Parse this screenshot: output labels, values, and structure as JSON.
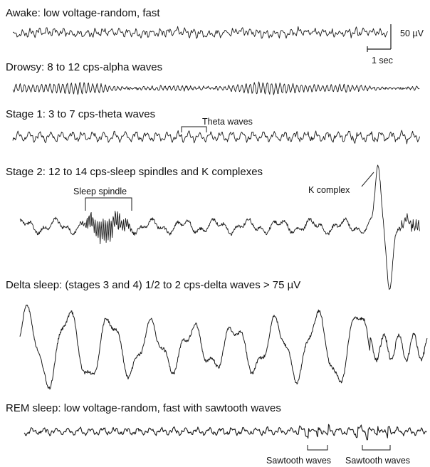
{
  "stages": [
    {
      "id": "awake",
      "label": "Awake: low voltage-random, fast"
    },
    {
      "id": "drowsy",
      "label": "Drowsy: 8 to 12 cps-alpha waves"
    },
    {
      "id": "stage1",
      "label": "Stage 1: 3 to 7 cps-theta waves"
    },
    {
      "id": "stage2",
      "label": "Stage 2: 12 to 14 cps-sleep spindles and K complexes"
    },
    {
      "id": "delta",
      "label": "Delta sleep: (stages 3 and 4) 1/2 to 2 cps-delta waves > 75 µV"
    },
    {
      "id": "rem",
      "label": "REM sleep: low voltage-random, fast with sawtooth waves"
    }
  ],
  "annotations": {
    "theta_waves": "Theta waves",
    "sleep_spindle": "Sleep spindle",
    "k_complex": "K complex",
    "sawtooth_1": "Sawtooth waves",
    "sawtooth_2": "Sawtooth waves"
  },
  "scale_bar": {
    "voltage": "50 µV",
    "time": "1 sec"
  },
  "colors": {
    "trace": "#1a1a1a",
    "text": "#111111"
  }
}
